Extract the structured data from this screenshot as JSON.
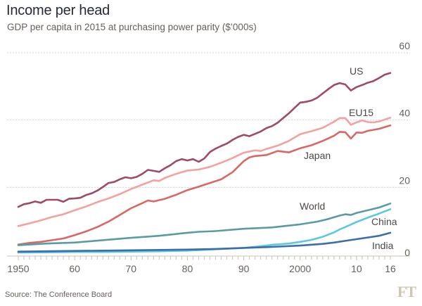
{
  "header": {
    "title": "Income per head",
    "subtitle": "GDP per capita in 2015 at purchasing power parity ($’000s)"
  },
  "footer": {
    "source": "Source: The Conference Board",
    "logo": "FT"
  },
  "chart_data": {
    "type": "line",
    "title": "Income per head",
    "subtitle": "GDP per capita in 2015 at purchasing power parity ($'000s)",
    "xlabel": "",
    "ylabel": "",
    "xlim": [
      1950,
      2016
    ],
    "ylim": [
      0,
      60
    ],
    "grid": true,
    "yticks": [
      0,
      20,
      40,
      60
    ],
    "ytick_labels": [
      "0",
      "20",
      "40",
      "60"
    ],
    "xticks": [
      1950,
      1960,
      1970,
      1980,
      1990,
      2000,
      2010,
      2016
    ],
    "xtick_labels": [
      "1950",
      "60",
      "70",
      "80",
      "90",
      "2000",
      "10",
      "16"
    ],
    "legend": "direct-labels",
    "series": [
      {
        "name": "US",
        "color": "#9e4a6a",
        "x": [
          1950,
          1951,
          1952,
          1953,
          1954,
          1955,
          1956,
          1957,
          1958,
          1959,
          1960,
          1961,
          1962,
          1963,
          1964,
          1965,
          1966,
          1967,
          1968,
          1969,
          1970,
          1971,
          1972,
          1973,
          1974,
          1975,
          1976,
          1977,
          1978,
          1979,
          1980,
          1981,
          1982,
          1983,
          1984,
          1985,
          1986,
          1987,
          1988,
          1989,
          1990,
          1991,
          1992,
          1993,
          1994,
          1995,
          1996,
          1997,
          1998,
          1999,
          2000,
          2001,
          2002,
          2003,
          2004,
          2005,
          2006,
          2007,
          2008,
          2009,
          2010,
          2011,
          2012,
          2013,
          2014,
          2015,
          2016
        ],
        "values": [
          14.2,
          15.0,
          15.3,
          15.8,
          15.4,
          16.3,
          16.3,
          16.3,
          15.7,
          16.6,
          16.7,
          16.9,
          17.7,
          18.2,
          19.0,
          20.1,
          21.3,
          21.6,
          22.4,
          23.0,
          22.7,
          23.1,
          24.0,
          25.2,
          24.9,
          24.6,
          25.7,
          26.6,
          27.8,
          28.4,
          28.0,
          28.4,
          27.6,
          28.6,
          30.5,
          31.5,
          32.3,
          33.0,
          34.1,
          35.0,
          35.6,
          35.2,
          35.9,
          36.6,
          37.6,
          38.2,
          39.2,
          40.6,
          42.0,
          43.6,
          45.2,
          45.4,
          45.8,
          46.6,
          47.9,
          49.2,
          50.4,
          51.0,
          50.6,
          48.8,
          49.8,
          50.4,
          51.1,
          51.6,
          52.5,
          53.5,
          54.0
        ]
      },
      {
        "name": "EU15",
        "color": "#f2a2a1",
        "x": [
          1950,
          1952,
          1954,
          1956,
          1958,
          1960,
          1962,
          1964,
          1966,
          1968,
          1970,
          1972,
          1974,
          1975,
          1976,
          1978,
          1980,
          1982,
          1984,
          1986,
          1988,
          1990,
          1992,
          1993,
          1994,
          1996,
          1998,
          2000,
          2002,
          2004,
          2006,
          2007,
          2008,
          2009,
          2010,
          2011,
          2012,
          2013,
          2014,
          2016
        ],
        "values": [
          8.5,
          9.3,
          10.2,
          11.2,
          12.0,
          13.2,
          14.3,
          15.6,
          16.7,
          18.0,
          19.5,
          20.8,
          22.1,
          21.9,
          22.8,
          24.0,
          25.0,
          25.3,
          26.1,
          27.3,
          28.7,
          30.3,
          31.0,
          30.8,
          31.4,
          32.4,
          33.8,
          35.8,
          36.7,
          37.7,
          39.5,
          40.6,
          40.6,
          38.6,
          39.3,
          39.9,
          39.4,
          39.3,
          39.6,
          40.7
        ]
      },
      {
        "name": "Japan",
        "color": "#d96864",
        "x": [
          1950,
          1952,
          1954,
          1956,
          1958,
          1960,
          1962,
          1964,
          1966,
          1968,
          1970,
          1972,
          1973,
          1974,
          1976,
          1978,
          1980,
          1982,
          1984,
          1986,
          1988,
          1990,
          1991,
          1992,
          1994,
          1996,
          1998,
          2000,
          2002,
          2004,
          2006,
          2007,
          2008,
          2009,
          2010,
          2011,
          2012,
          2014,
          2016
        ],
        "values": [
          3.0,
          3.5,
          3.8,
          4.3,
          4.8,
          5.8,
          6.9,
          8.2,
          9.8,
          11.8,
          13.8,
          15.3,
          16.1,
          15.8,
          16.6,
          17.8,
          19.2,
          20.2,
          21.3,
          22.4,
          24.5,
          27.8,
          28.9,
          29.3,
          29.6,
          30.8,
          30.4,
          31.6,
          32.5,
          33.8,
          35.3,
          36.5,
          36.4,
          34.5,
          36.3,
          36.2,
          36.8,
          37.4,
          38.4
        ]
      },
      {
        "name": "World",
        "color": "#5a9ba6",
        "x": [
          1950,
          1955,
          1960,
          1965,
          1970,
          1975,
          1980,
          1982,
          1985,
          1990,
          1995,
          2000,
          2003,
          2005,
          2007,
          2008,
          2009,
          2010,
          2012,
          2014,
          2016
        ],
        "values": [
          2.8,
          3.3,
          3.6,
          4.3,
          5.0,
          5.6,
          6.5,
          6.8,
          7.0,
          7.7,
          8.1,
          9.0,
          9.8,
          10.6,
          11.6,
          12.0,
          11.8,
          12.4,
          13.2,
          14.0,
          15.2
        ]
      },
      {
        "name": "China",
        "color": "#5bc8e0",
        "x": [
          1950,
          1955,
          1960,
          1965,
          1970,
          1975,
          1980,
          1985,
          1990,
          1993,
          1995,
          1998,
          2000,
          2002,
          2004,
          2006,
          2007,
          2008,
          2010,
          2012,
          2014,
          2016
        ],
        "values": [
          0.6,
          0.7,
          0.8,
          0.8,
          0.9,
          1.0,
          1.2,
          1.6,
          2.0,
          2.5,
          2.9,
          3.3,
          3.8,
          4.4,
          5.3,
          6.6,
          7.5,
          8.2,
          9.7,
          11.0,
          12.2,
          13.5
        ]
      },
      {
        "name": "India",
        "color": "#3d6ea8",
        "x": [
          1950,
          1955,
          1960,
          1965,
          1970,
          1975,
          1980,
          1985,
          1990,
          1995,
          2000,
          2004,
          2006,
          2008,
          2010,
          2012,
          2014,
          2016
        ],
        "values": [
          0.9,
          1.0,
          1.1,
          1.2,
          1.3,
          1.4,
          1.5,
          1.7,
          2.0,
          2.3,
          2.7,
          3.2,
          3.6,
          4.1,
          4.6,
          5.1,
          5.6,
          6.5
        ]
      }
    ],
    "annotations": [
      {
        "text": "US",
        "series": "US"
      },
      {
        "text": "EU15",
        "series": "EU15"
      },
      {
        "text": "Japan",
        "series": "Japan"
      },
      {
        "text": "World",
        "series": "World"
      },
      {
        "text": "China",
        "series": "China"
      },
      {
        "text": "India",
        "series": "India"
      }
    ]
  }
}
